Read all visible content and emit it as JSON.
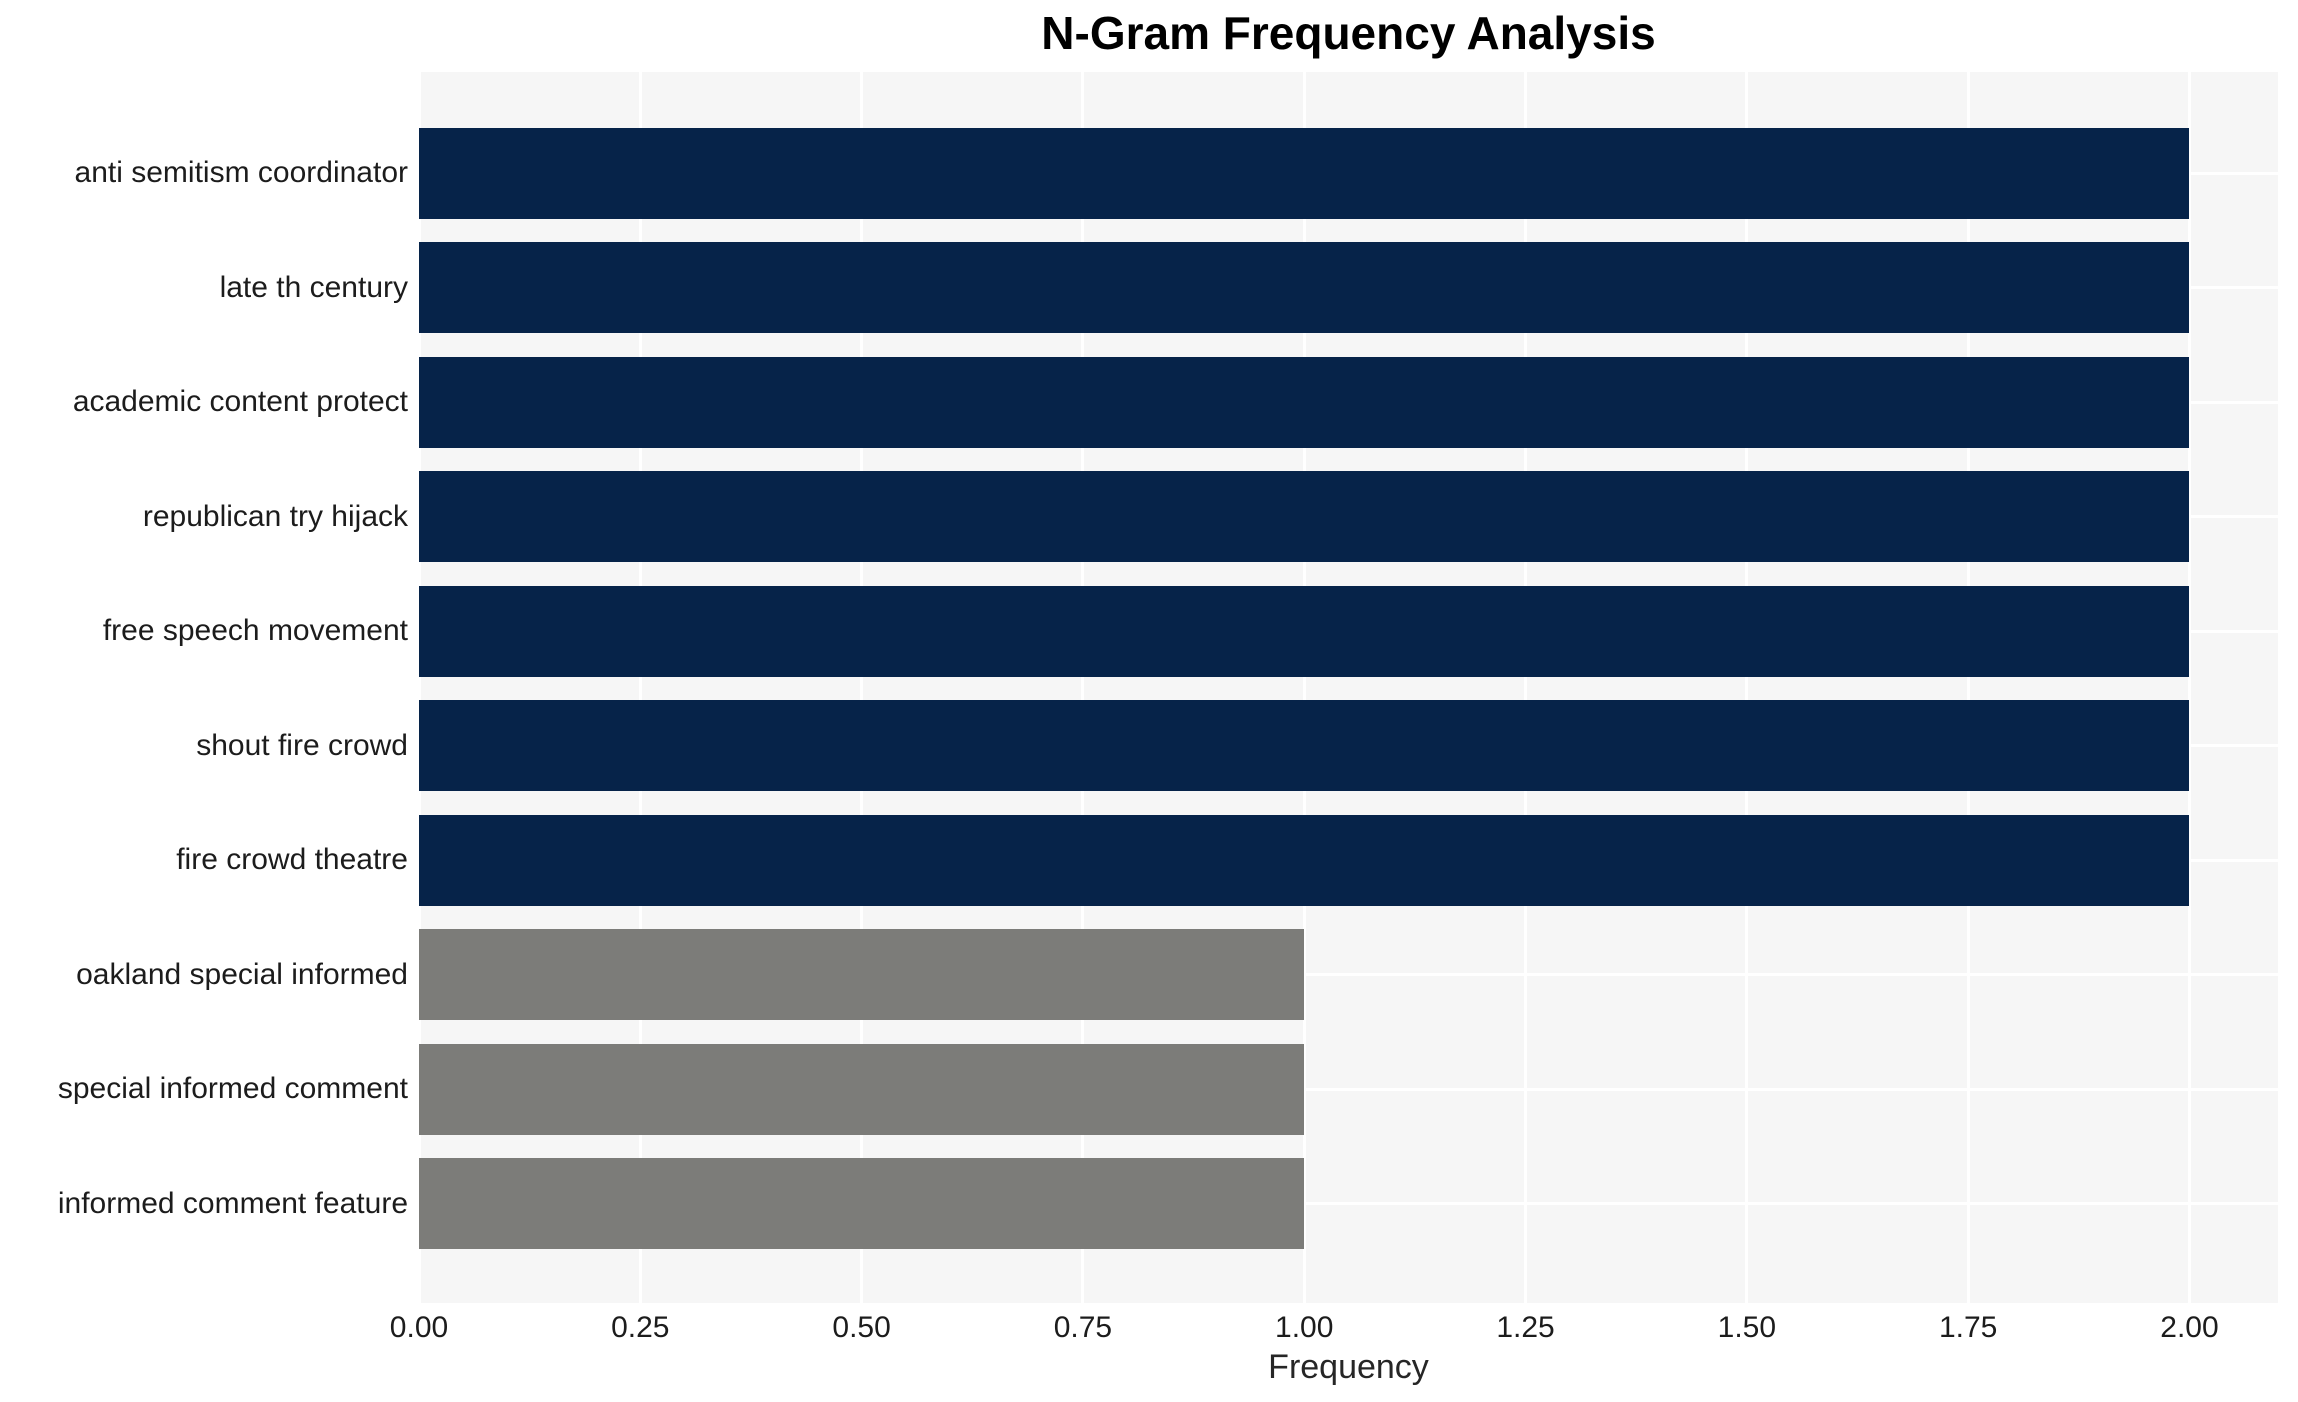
{
  "chart_data": {
    "type": "bar",
    "orientation": "horizontal",
    "title": "N-Gram Frequency Analysis",
    "xlabel": "Frequency",
    "ylabel": "",
    "categories": [
      "anti semitism coordinator",
      "late th century",
      "academic content protect",
      "republican try hijack",
      "free speech movement",
      "shout fire crowd",
      "fire crowd theatre",
      "oakland special informed",
      "special informed comment",
      "informed comment feature"
    ],
    "values": [
      2,
      2,
      2,
      2,
      2,
      2,
      2,
      1,
      1,
      1
    ],
    "bar_colors": [
      "#062349",
      "#062349",
      "#062349",
      "#062349",
      "#062349",
      "#062349",
      "#062349",
      "#7c7c79",
      "#7c7c79",
      "#7c7c79"
    ],
    "xlim": [
      0,
      2.1
    ],
    "xticks": [
      0,
      0.25,
      0.5,
      0.75,
      1,
      1.25,
      1.5,
      1.75,
      2
    ],
    "xtick_labels": [
      "0.00",
      "0.25",
      "0.50",
      "0.75",
      "1.00",
      "1.25",
      "1.50",
      "1.75",
      "2.00"
    ],
    "grid": true,
    "legend": false,
    "styles": {
      "panel_bg": "#f6f6f6",
      "grid_color": "#ffffff",
      "navy_bar_color": "#062349",
      "gray_bar_color": "#7c7c79",
      "text_color": "#1c1c1c",
      "title_color": "#000000"
    }
  }
}
